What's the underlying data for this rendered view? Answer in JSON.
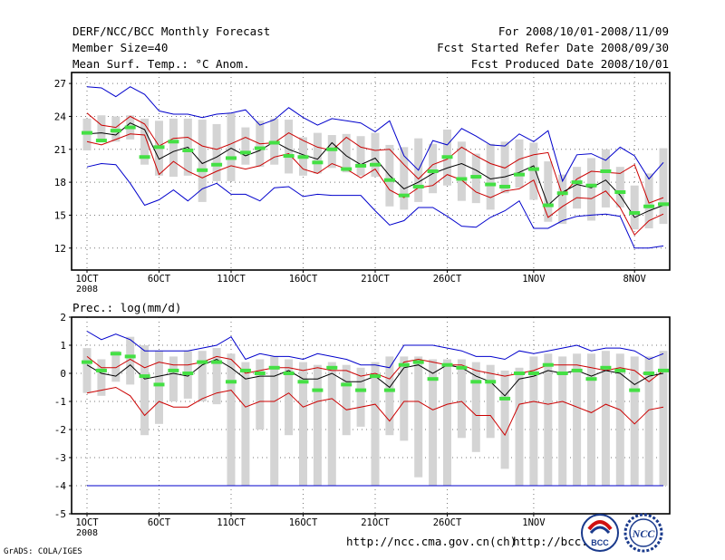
{
  "header": {
    "title": "DERF/NCC/BCC Monthly Forecast",
    "member": "Member Size=40",
    "variable": "Mean Surf. Temp.: °C Anom.",
    "period": "For 2008/10/01-2008/11/09",
    "refer": "Fcst Started Refer Date 2008/09/30",
    "produced": "Fcst Produced Date 2008/10/01"
  },
  "footer": {
    "url1": "http://ncc.cma.gov.cn(ch)",
    "url2": "http://bcc.",
    "credit": "GrADS: COLA/IGES",
    "logo_bcc": "BCC",
    "logo_ncc": "NCC"
  },
  "chart_data": [
    {
      "type": "line",
      "title": "Mean Surf. Temp.: °C Anom.",
      "ylim": [
        10,
        28
      ],
      "yticks": [
        12,
        15,
        18,
        21,
        24,
        27
      ],
      "xticks": [
        {
          "day": 1,
          "label": "1OCT",
          "sub": "2008"
        },
        {
          "day": 6,
          "label": "6OCT"
        },
        {
          "day": 11,
          "label": "11OCT"
        },
        {
          "day": 16,
          "label": "16OCT"
        },
        {
          "day": 21,
          "label": "21OCT"
        },
        {
          "day": 26,
          "label": "26OCT"
        },
        {
          "day": 32,
          "label": "1NOV"
        },
        {
          "day": 39,
          "label": "8NOV"
        }
      ],
      "bar_color": "#d4d4d4",
      "series": [
        {
          "name": "max",
          "color": "#0000cc",
          "values": [
            26.7,
            26.6,
            25.8,
            26.7,
            26.0,
            24.5,
            24.2,
            24.2,
            23.9,
            24.2,
            24.3,
            24.6,
            23.2,
            23.7,
            24.8,
            23.9,
            23.2,
            23.8,
            23.6,
            23.4,
            22.6,
            23.6,
            20.4,
            19.1,
            21.8,
            21.4,
            22.9,
            22.2,
            21.4,
            21.3,
            22.4,
            21.7,
            22.7,
            18.1,
            20.5,
            20.6,
            20.0,
            21.2,
            20.4,
            18.3,
            19.8
          ]
        },
        {
          "name": "p_upper",
          "color": "#cc0000",
          "values": [
            24.3,
            23.2,
            23.0,
            24.0,
            23.3,
            21.3,
            22.0,
            22.1,
            21.3,
            21.0,
            21.5,
            22.1,
            21.5,
            21.6,
            22.5,
            21.8,
            21.2,
            20.9,
            22.1,
            21.2,
            20.9,
            21.0,
            19.6,
            18.3,
            19.6,
            20.1,
            21.2,
            20.4,
            19.7,
            19.3,
            20.1,
            20.5,
            20.7,
            16.8,
            18.3,
            19.0,
            18.9,
            18.8,
            19.6,
            16.1,
            16.6
          ]
        },
        {
          "name": "mean",
          "color": "#000000",
          "values": [
            22.4,
            22.5,
            22.3,
            23.4,
            22.8,
            20.1,
            20.8,
            21.2,
            19.7,
            20.3,
            21.1,
            20.4,
            20.9,
            21.7,
            21.0,
            20.5,
            20.1,
            21.6,
            20.4,
            19.6,
            20.2,
            18.6,
            17.4,
            18.0,
            18.8,
            19.3,
            19.7,
            19.1,
            18.3,
            18.5,
            18.9,
            19.5,
            15.9,
            17.1,
            17.8,
            17.5,
            18.2,
            16.8,
            14.8,
            15.4,
            15.9
          ]
        },
        {
          "name": "p_lower",
          "color": "#cc0000",
          "values": [
            21.7,
            21.4,
            21.9,
            22.4,
            22.3,
            18.7,
            19.9,
            19.0,
            18.4,
            19.0,
            19.5,
            19.2,
            19.5,
            20.3,
            20.6,
            19.2,
            18.8,
            19.7,
            19.2,
            18.4,
            19.2,
            17.3,
            16.6,
            17.5,
            17.7,
            18.7,
            18.2,
            17.1,
            16.6,
            17.2,
            17.4,
            18.2,
            14.8,
            15.8,
            16.6,
            16.5,
            17.2,
            15.7,
            13.2,
            14.5,
            15.1
          ]
        },
        {
          "name": "min",
          "color": "#0000cc",
          "values": [
            19.4,
            19.7,
            19.6,
            17.9,
            15.9,
            16.4,
            17.3,
            16.3,
            17.4,
            17.9,
            16.9,
            16.9,
            16.3,
            17.5,
            17.6,
            16.7,
            16.9,
            16.8,
            16.8,
            16.8,
            15.4,
            14.1,
            14.5,
            15.7,
            15.7,
            14.9,
            14.0,
            13.9,
            14.8,
            15.4,
            16.3,
            13.8,
            13.8,
            14.5,
            14.9,
            15.0,
            15.1,
            14.9,
            12.0,
            12.0,
            12.2
          ]
        }
      ],
      "obs_marks": [
        22.5,
        21.8,
        22.7,
        23.0,
        20.3,
        21.2,
        21.7,
        20.9,
        19.1,
        19.6,
        20.2,
        20.7,
        21.1,
        21.6,
        20.4,
        20.3,
        19.8,
        21.0,
        19.2,
        19.5,
        19.6,
        18.2,
        16.8,
        17.6,
        19.0,
        20.3,
        18.3,
        18.5,
        17.8,
        17.6,
        18.7,
        19.2,
        15.9,
        17.0,
        18.0,
        17.7,
        19.0,
        17.1,
        15.2,
        15.8,
        16.0
      ],
      "spread_bars": [
        [
          20.9,
          23.8
        ],
        [
          21.9,
          24.1
        ],
        [
          21.7,
          24.0
        ],
        [
          21.9,
          24.1
        ],
        [
          19.6,
          23.8
        ],
        [
          18.6,
          23.6
        ],
        [
          18.5,
          23.8
        ],
        [
          18.6,
          23.8
        ],
        [
          16.2,
          23.7
        ],
        [
          18.1,
          23.3
        ],
        [
          18.1,
          24.3
        ],
        [
          19.6,
          23.0
        ],
        [
          19.4,
          23.6
        ],
        [
          19.6,
          23.8
        ],
        [
          18.8,
          23.7
        ],
        [
          18.6,
          22.1
        ],
        [
          18.8,
          22.5
        ],
        [
          19.3,
          22.3
        ],
        [
          18.9,
          22.4
        ],
        [
          18.6,
          22.2
        ],
        [
          18.5,
          22.5
        ],
        [
          15.8,
          21.4
        ],
        [
          15.5,
          21.2
        ],
        [
          16.2,
          22.0
        ],
        [
          17.0,
          21.5
        ],
        [
          17.7,
          22.8
        ],
        [
          16.3,
          21.7
        ],
        [
          16.1,
          20.6
        ],
        [
          15.5,
          21.5
        ],
        [
          17.0,
          21.7
        ],
        [
          17.5,
          21.9
        ],
        [
          16.4,
          21.6
        ],
        [
          14.4,
          19.9
        ],
        [
          14.2,
          18.7
        ],
        [
          15.6,
          19.4
        ],
        [
          14.5,
          20.2
        ],
        [
          15.7,
          21.0
        ],
        [
          15.7,
          19.4
        ],
        [
          13.7,
          17.7
        ],
        [
          13.8,
          18.8
        ],
        [
          14.2,
          21.1
        ]
      ]
    },
    {
      "type": "line",
      "title": "Prec.: log(mm/d)",
      "ylim": [
        -5,
        2
      ],
      "yticks": [
        -5,
        -4,
        -3,
        -2,
        -1,
        0,
        1,
        2
      ],
      "xticks": [
        {
          "day": 1,
          "label": "1OCT",
          "sub": "2008"
        },
        {
          "day": 6,
          "label": "6OCT"
        },
        {
          "day": 11,
          "label": "11OCT"
        },
        {
          "day": 16,
          "label": "16OCT"
        },
        {
          "day": 21,
          "label": "21OCT"
        },
        {
          "day": 26,
          "label": "26OCT"
        },
        {
          "day": 32,
          "label": "1NOV"
        }
      ],
      "bar_color": "#d4d4d4",
      "series": [
        {
          "name": "max",
          "color": "#0000cc",
          "values": [
            1.5,
            1.2,
            1.4,
            1.2,
            0.8,
            0.8,
            0.8,
            0.8,
            0.9,
            1.0,
            1.3,
            0.5,
            0.7,
            0.6,
            0.6,
            0.5,
            0.7,
            0.6,
            0.5,
            0.3,
            0.3,
            0.2,
            1.0,
            1.0,
            1.0,
            0.9,
            0.8,
            0.6,
            0.6,
            0.5,
            0.8,
            0.7,
            0.8,
            0.9,
            1.0,
            0.8,
            0.9,
            0.9,
            0.8,
            0.5,
            0.7
          ]
        },
        {
          "name": "p_upper",
          "color": "#cc0000",
          "values": [
            0.6,
            0.2,
            0.2,
            0.5,
            0.2,
            0.4,
            0.3,
            0.3,
            0.4,
            0.6,
            0.5,
            0.0,
            0.1,
            0.2,
            0.2,
            0.1,
            0.2,
            0.1,
            0.1,
            -0.1,
            0.0,
            -0.2,
            0.4,
            0.5,
            0.4,
            0.3,
            0.3,
            0.1,
            0.0,
            -0.1,
            0.0,
            0.1,
            0.3,
            0.3,
            0.3,
            0.2,
            0.1,
            0.2,
            0.1,
            -0.3,
            0.1
          ]
        },
        {
          "name": "mean",
          "color": "#000000",
          "values": [
            0.3,
            0.0,
            -0.1,
            0.3,
            -0.2,
            -0.1,
            0.0,
            -0.1,
            0.3,
            0.5,
            0.2,
            -0.2,
            -0.1,
            -0.1,
            0.1,
            -0.2,
            -0.2,
            0.0,
            -0.3,
            -0.3,
            -0.1,
            -0.5,
            0.2,
            0.3,
            0.0,
            0.3,
            0.2,
            -0.1,
            -0.3,
            -0.8,
            -0.2,
            -0.1,
            0.1,
            0.0,
            0.1,
            -0.1,
            0.1,
            0.0,
            -0.4,
            -0.1,
            0.0
          ]
        },
        {
          "name": "p_lower",
          "color": "#cc0000",
          "values": [
            -0.7,
            -0.6,
            -0.5,
            -0.8,
            -1.5,
            -1.0,
            -1.2,
            -1.2,
            -0.9,
            -0.7,
            -0.6,
            -1.2,
            -1.0,
            -1.0,
            -0.7,
            -1.2,
            -1.0,
            -0.9,
            -1.3,
            -1.2,
            -1.1,
            -1.7,
            -1.0,
            -1.0,
            -1.3,
            -1.1,
            -1.0,
            -1.5,
            -1.5,
            -2.2,
            -1.1,
            -1.0,
            -1.1,
            -1.0,
            -1.2,
            -1.4,
            -1.1,
            -1.3,
            -1.8,
            -1.3,
            -1.2
          ]
        },
        {
          "name": "min",
          "color": "#0000cc",
          "values": [
            -4,
            -4,
            -4,
            -4,
            -4,
            -4,
            -4,
            -4,
            -4,
            -4,
            -4,
            -4,
            -4,
            -4,
            -4,
            -4,
            -4,
            -4,
            -4,
            -4,
            -4,
            -4,
            -4,
            -4,
            -4,
            -4,
            -4,
            -4,
            -4,
            -4,
            -4,
            -4,
            -4,
            -4,
            -4,
            -4,
            -4,
            -4,
            -4,
            -4,
            -4
          ]
        }
      ],
      "obs_marks": [
        0.4,
        0.1,
        0.7,
        0.6,
        -0.1,
        -0.4,
        0.1,
        0.0,
        0.4,
        0.4,
        -0.3,
        0.1,
        0.0,
        0.2,
        0.0,
        -0.3,
        -0.6,
        0.2,
        -0.4,
        -0.6,
        -0.1,
        -0.6,
        0.3,
        0.4,
        -0.2,
        0.3,
        0.2,
        -0.3,
        -0.3,
        -0.9,
        0.0,
        0.0,
        0.3,
        0.0,
        0.1,
        -0.2,
        0.2,
        0.1,
        -0.6,
        0.0,
        0.1
      ],
      "spread_bars": [
        [
          -0.7,
          0.9
        ],
        [
          -0.8,
          0.5
        ],
        [
          -0.3,
          0.8
        ],
        [
          -0.4,
          1.3
        ],
        [
          -2.2,
          1.0
        ],
        [
          -1.8,
          0.8
        ],
        [
          -1.0,
          0.6
        ],
        [
          -0.9,
          0.8
        ],
        [
          -1.0,
          0.8
        ],
        [
          -1.1,
          0.9
        ],
        [
          -4.0,
          0.7
        ],
        [
          -4.0,
          0.4
        ],
        [
          -2.0,
          0.5
        ],
        [
          -4.0,
          0.6
        ],
        [
          -2.2,
          0.5
        ],
        [
          -4.0,
          0.4
        ],
        [
          -4.0,
          0.3
        ],
        [
          -4.0,
          0.4
        ],
        [
          -2.2,
          0.3
        ],
        [
          -1.9,
          0.2
        ],
        [
          -4.0,
          0.4
        ],
        [
          -2.2,
          0.6
        ],
        [
          -2.4,
          0.6
        ],
        [
          -3.7,
          0.6
        ],
        [
          -4.0,
          0.5
        ],
        [
          -4.0,
          0.5
        ],
        [
          -2.3,
          0.5
        ],
        [
          -2.8,
          0.4
        ],
        [
          -2.3,
          0.3
        ],
        [
          -3.4,
          0.1
        ],
        [
          -4.0,
          0.2
        ],
        [
          -4.0,
          0.6
        ],
        [
          -4.0,
          0.7
        ],
        [
          -4.0,
          0.6
        ],
        [
          -4.0,
          0.7
        ],
        [
          -4.0,
          0.7
        ],
        [
          -4.0,
          0.8
        ],
        [
          -4.0,
          0.7
        ],
        [
          -4.0,
          0.6
        ],
        [
          -4.0,
          0.6
        ],
        [
          -4.0,
          0.8
        ]
      ]
    }
  ],
  "bottom_label": "Prec.: log(mm/d)"
}
